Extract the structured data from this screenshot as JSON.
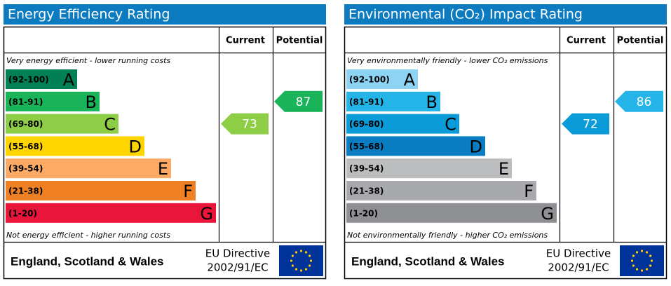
{
  "chart_data": [
    {
      "type": "epc",
      "title": "Energy Efficiency Rating",
      "title_color": "#0c7bc0",
      "header_current": "Current",
      "header_potential": "Potential",
      "top_note": "Very energy efficient - lower running costs",
      "bottom_note": "Not energy efficient - higher running costs",
      "bands": [
        {
          "label": "(92-100)",
          "min": 92,
          "max": 100,
          "letter": "A",
          "color": "#008054"
        },
        {
          "label": "(81-91)",
          "min": 81,
          "max": 91,
          "letter": "B",
          "color": "#19b459"
        },
        {
          "label": "(69-80)",
          "min": 69,
          "max": 80,
          "letter": "C",
          "color": "#8dce46"
        },
        {
          "label": "(55-68)",
          "min": 55,
          "max": 68,
          "letter": "D",
          "color": "#ffd500"
        },
        {
          "label": "(39-54)",
          "min": 39,
          "max": 54,
          "letter": "E",
          "color": "#fcaa65"
        },
        {
          "label": "(21-38)",
          "min": 21,
          "max": 38,
          "letter": "F",
          "color": "#ef8023"
        },
        {
          "label": "(1-20)",
          "min": 1,
          "max": 20,
          "letter": "G",
          "color": "#e9153b"
        }
      ],
      "current": 73,
      "potential": 87,
      "region": "England, Scotland & Wales",
      "directive": [
        "EU Directive",
        "2002/91/EC"
      ]
    },
    {
      "type": "epc",
      "title": "Environmental (CO₂) Impact Rating",
      "title_color": "#0c7bc0",
      "header_current": "Current",
      "header_potential": "Potential",
      "top_note": "Very environmentally friendly - lower CO₂ emissions",
      "bottom_note": "Not environmentally friendly - higher CO₂ emissions",
      "bands": [
        {
          "label": "(92-100)",
          "min": 92,
          "max": 100,
          "letter": "A",
          "color": "#8dd3f3"
        },
        {
          "label": "(81-91)",
          "min": 81,
          "max": 91,
          "letter": "B",
          "color": "#25b4e8"
        },
        {
          "label": "(69-80)",
          "min": 69,
          "max": 80,
          "letter": "C",
          "color": "#0b9bd8"
        },
        {
          "label": "(55-68)",
          "min": 55,
          "max": 68,
          "letter": "D",
          "color": "#0a7dc2"
        },
        {
          "label": "(39-54)",
          "min": 39,
          "max": 54,
          "letter": "E",
          "color": "#bbbdbf"
        },
        {
          "label": "(21-38)",
          "min": 21,
          "max": 38,
          "letter": "F",
          "color": "#a7a9ac"
        },
        {
          "label": "(1-20)",
          "min": 1,
          "max": 20,
          "letter": "G",
          "color": "#8e9093"
        }
      ],
      "current": 72,
      "potential": 86,
      "region": "England, Scotland & Wales",
      "directive": [
        "EU Directive",
        "2002/91/EC"
      ]
    }
  ]
}
